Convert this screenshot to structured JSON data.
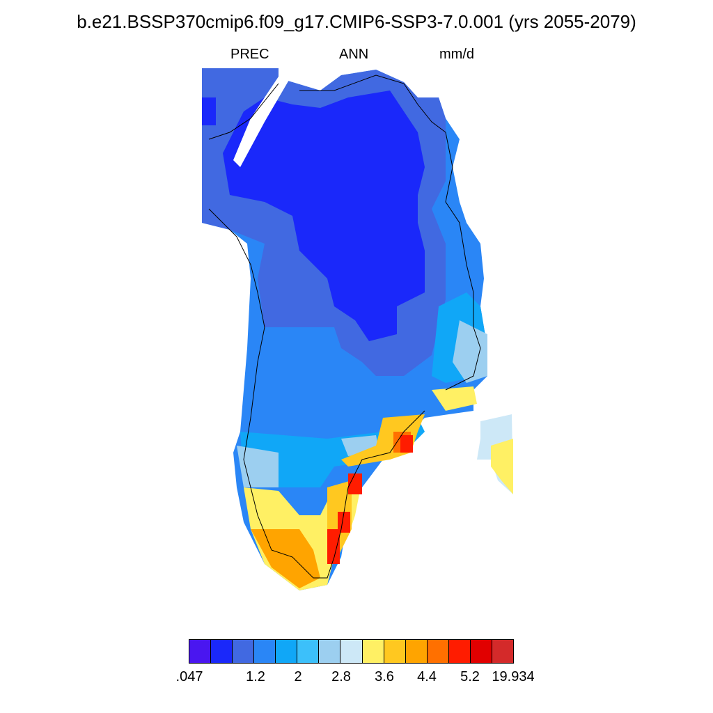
{
  "header": {
    "title": "b.e21.BSSP370cmip6.f09_g17.CMIP6-SSP3-7.0.001 (yrs 2055-2079)",
    "variable": "PREC",
    "season": "ANN",
    "units": "mm/d"
  },
  "colorbar": {
    "colors": [
      "#4a16f0",
      "#1a28fa",
      "#4169e1",
      "#2a86f6",
      "#10a7f7",
      "#3cc0fa",
      "#9ccff0",
      "#cde8f7",
      "#fff064",
      "#ffc820",
      "#ffa400",
      "#ff7000",
      "#ff1c00",
      "#e10000",
      "#d42a2a"
    ],
    "labels": [
      ".047",
      "1.2",
      "2",
      "2.8",
      "3.6",
      "4.4",
      "5.2",
      "19.934"
    ]
  },
  "map_regions": [
    "region-nw-corner",
    "region-north-interior",
    "region-central-core",
    "region-west-mid",
    "region-east-coast",
    "region-south",
    "region-south-tip",
    "region-southeast-coast",
    "island-east"
  ]
}
